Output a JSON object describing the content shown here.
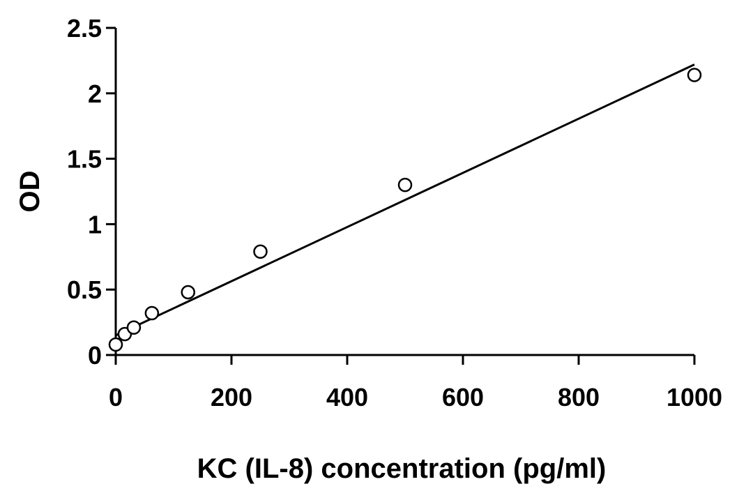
{
  "chart_data": {
    "type": "scatter",
    "title": "",
    "xlabel": "KC (IL-8) concentration (pg/ml)",
    "ylabel": "OD",
    "xlim": [
      0,
      1000
    ],
    "ylim": [
      0,
      2.5
    ],
    "x_ticks": [
      "0",
      "200",
      "400",
      "600",
      "800",
      "1000"
    ],
    "y_ticks": [
      "0",
      "0.5",
      "1",
      "1.5",
      "2",
      "2.5"
    ],
    "grid": false,
    "legend": "none",
    "points": [
      {
        "x": 0,
        "y": 0.08
      },
      {
        "x": 15.6,
        "y": 0.16
      },
      {
        "x": 31.25,
        "y": 0.21
      },
      {
        "x": 62.5,
        "y": 0.32
      },
      {
        "x": 125,
        "y": 0.48
      },
      {
        "x": 250,
        "y": 0.79
      },
      {
        "x": 500,
        "y": 1.3
      },
      {
        "x": 1000,
        "y": 2.14
      }
    ],
    "trendline": {
      "type": "linear",
      "x": [
        0,
        1000
      ],
      "y": [
        0.15,
        2.22
      ]
    },
    "colors": {
      "axis": "#000000",
      "marker_fill": "#ffffff",
      "marker_stroke": "#000000",
      "line": "#000000"
    }
  }
}
